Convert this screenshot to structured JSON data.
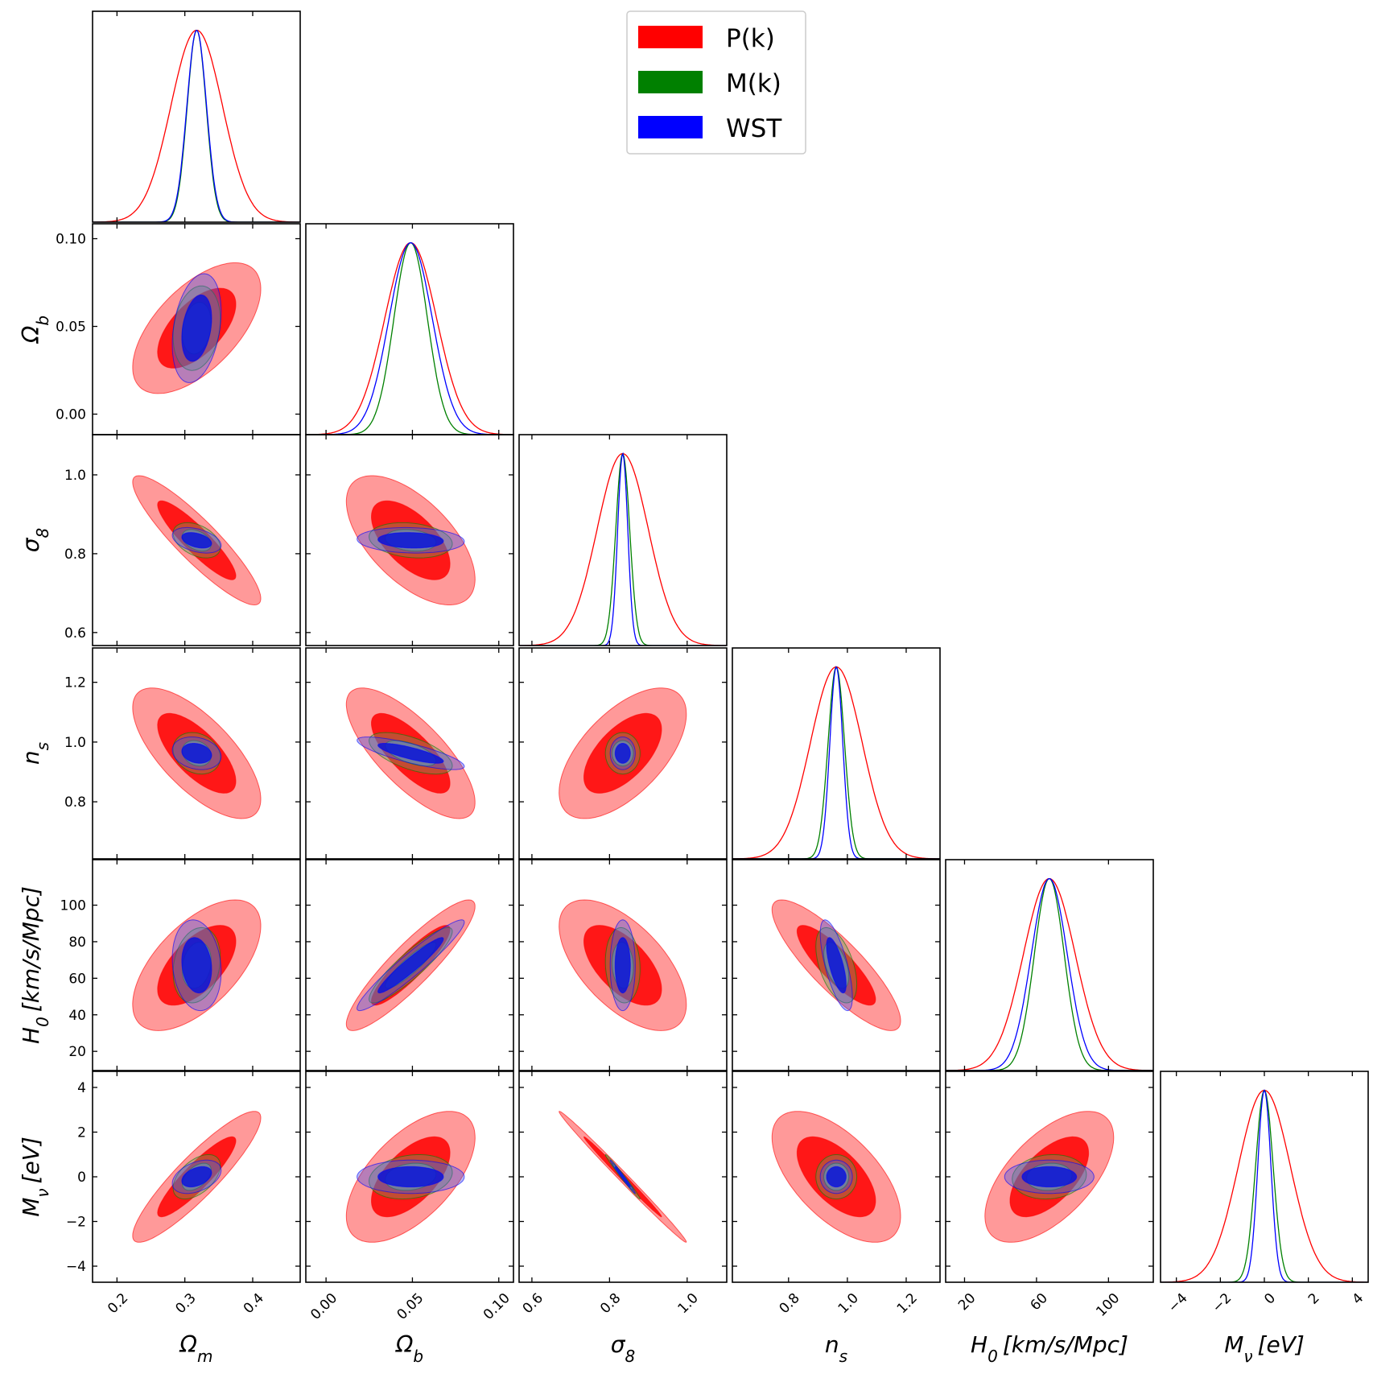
{
  "chart_data": {
    "type": "corner",
    "legend": {
      "placement": "top-center",
      "entries": [
        {
          "name": "P(k)",
          "color": "#ff0000"
        },
        {
          "name": "M(k)",
          "color": "#008000"
        },
        {
          "name": "WST",
          "color": "#0000ff"
        }
      ]
    },
    "params": [
      {
        "symbol": "Ω",
        "sub": "m",
        "unit": "",
        "mean": 0.3175,
        "range": [
          0.164,
          0.47
        ],
        "xticks": [
          0.2,
          0.3,
          0.4
        ],
        "xtick_labels": [
          "0.2",
          "0.3",
          "0.4"
        ],
        "yticks": [],
        "ytick_labels": []
      },
      {
        "symbol": "Ω",
        "sub": "b",
        "unit": "",
        "mean": 0.049,
        "range": [
          -0.0117,
          0.1085
        ],
        "xticks": [
          0.0,
          0.05,
          0.1
        ],
        "xtick_labels": [
          "0.00",
          "0.05",
          "0.10"
        ],
        "yticks": [
          0.0,
          0.05,
          0.1
        ],
        "ytick_labels": [
          "0.00",
          "0.05",
          "0.10"
        ]
      },
      {
        "symbol": "σ",
        "sub": "8",
        "unit": "",
        "mean": 0.834,
        "range": [
          0.567,
          1.102
        ],
        "xticks": [
          0.6,
          0.8,
          1.0
        ],
        "xtick_labels": [
          "0.6",
          "0.8",
          "1.0"
        ],
        "yticks": [
          0.6,
          0.8,
          1.0
        ],
        "ytick_labels": [
          "0.6",
          "0.8",
          "1.0"
        ]
      },
      {
        "symbol": "n",
        "sub": "s",
        "unit": "",
        "mean": 0.9624,
        "range": [
          0.609,
          1.315
        ],
        "xticks": [
          0.8,
          1.0,
          1.2
        ],
        "xtick_labels": [
          "0.8",
          "1.0",
          "1.2"
        ],
        "yticks": [
          0.8,
          1.0,
          1.2
        ],
        "ytick_labels": [
          "0.8",
          "1.0",
          "1.2"
        ]
      },
      {
        "symbol": "H",
        "sub": "0",
        "unit": "[km/s/Mpc]",
        "mean": 67.11,
        "range": [
          9.5,
          124.9
        ],
        "xticks": [
          20,
          60,
          100
        ],
        "xtick_labels": [
          "20",
          "60",
          "100"
        ],
        "yticks": [
          20,
          40,
          60,
          80,
          100
        ],
        "ytick_labels": [
          "20",
          "40",
          "60",
          "80",
          "100"
        ]
      },
      {
        "symbol": "M",
        "sub": "ν",
        "unit": "[eV]",
        "mean": 0.0,
        "range": [
          -4.72,
          4.72
        ],
        "xticks": [
          -4,
          -2,
          0,
          2,
          4
        ],
        "xtick_labels": [
          "−4",
          "−2",
          "0",
          "2",
          "4"
        ],
        "yticks": [
          -4,
          -2,
          0,
          2,
          4
        ],
        "ytick_labels": [
          "−4",
          "−2",
          "0",
          "2",
          "4"
        ]
      }
    ],
    "series": [
      {
        "name": "P(k)",
        "color": "#ff0000",
        "fill_outer": "#ff0000",
        "fill_inner": "#ff0000",
        "sigma": [
          0.038,
          0.015,
          0.066,
          0.088,
          14.4,
          1.18
        ],
        "corr": [
          [
            1,
            0.6,
            -0.9,
            -0.7,
            0.6,
            0.9
          ],
          [
            0.6,
            1,
            -0.6,
            -0.75,
            0.9,
            0.6
          ],
          [
            -0.9,
            -0.6,
            1,
            0.6,
            -0.6,
            -0.995
          ],
          [
            -0.7,
            -0.75,
            0.6,
            1,
            -0.85,
            -0.6
          ],
          [
            0.6,
            0.9,
            -0.6,
            -0.85,
            1,
            0.6
          ],
          [
            0.9,
            0.6,
            -0.995,
            -0.6,
            0.6,
            1
          ]
        ]
      },
      {
        "name": "M(k)",
        "color": "#008000",
        "fill_outer": "#6b9e5a",
        "fill_inner": "#8aa870",
        "sigma": [
          0.014,
          0.0097,
          0.018,
          0.028,
          8.3,
          0.4
        ],
        "corr": [
          [
            1,
            0.2,
            -0.4,
            -0.2,
            0.2,
            0.5
          ],
          [
            0.2,
            1,
            -0.2,
            -0.6,
            0.9,
            0.2
          ],
          [
            -0.4,
            -0.2,
            1,
            0.0,
            -0.1,
            -0.99
          ],
          [
            -0.2,
            -0.6,
            0.0,
            1,
            -0.5,
            0.0
          ],
          [
            0.2,
            0.9,
            -0.1,
            -0.5,
            1,
            0.1
          ],
          [
            0.5,
            0.2,
            -0.99,
            0.0,
            0.1,
            1
          ]
        ]
      },
      {
        "name": "WST",
        "color": "#0000ff",
        "fill_outer": "#4a55e6",
        "fill_inner": "#0a14d8",
        "sigma": [
          0.0145,
          0.0125,
          0.013,
          0.022,
          10.0,
          0.3
        ],
        "corr": [
          [
            1,
            0.3,
            -0.4,
            -0.2,
            -0.15,
            0.4
          ],
          [
            0.3,
            1,
            -0.1,
            -0.8,
            0.95,
            0.0
          ],
          [
            -0.4,
            -0.1,
            1,
            0.0,
            0.0,
            -0.99
          ],
          [
            -0.2,
            -0.8,
            0.0,
            1,
            -0.7,
            0.0
          ],
          [
            -0.15,
            0.95,
            0.0,
            -0.7,
            1,
            0.0
          ],
          [
            0.4,
            0.0,
            -0.99,
            0.0,
            0.0,
            1
          ]
        ]
      }
    ],
    "contour_levels": [
      "68%",
      "95%"
    ]
  }
}
